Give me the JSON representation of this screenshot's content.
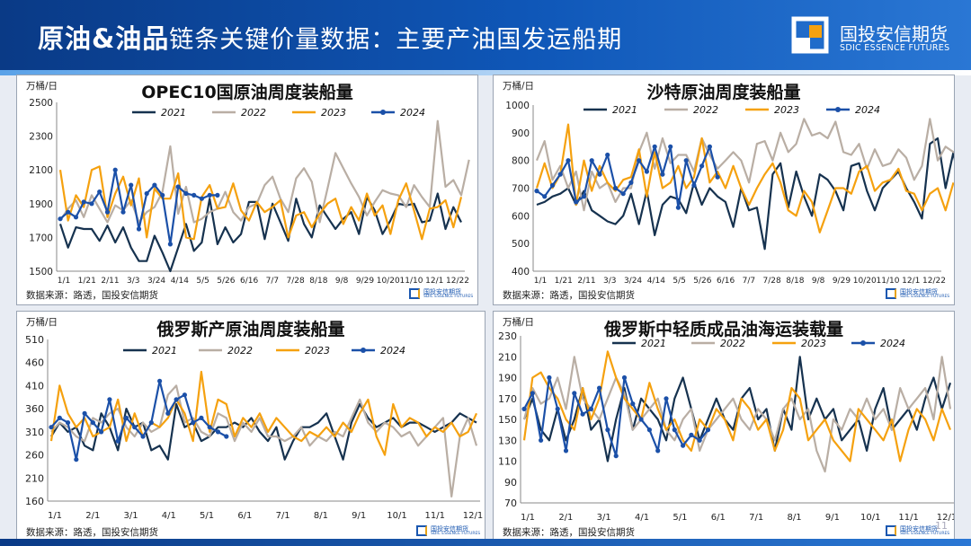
{
  "header": {
    "title_bold": "原油&油品",
    "title_rest": "链条关键价量数据：主要产油国发运船期",
    "logo_cn": "国投安信期货",
    "logo_en": "SDIC ESSENCE FUTURES"
  },
  "page_number": "11",
  "colors": {
    "2021": "#16324f",
    "2022": "#b9aea4",
    "2023": "#f5a10f",
    "2024": "#1b50a8"
  },
  "chart_data": [
    {
      "type": "line",
      "title": "OPEC10国原油周度装船量",
      "unit": "万桶/日",
      "source": "数据来源：路透，国投安信期货",
      "watermark_cn": "国投安信期货",
      "watermark_en": "SDIC ESSENCE FUTURES",
      "legend": [
        "2021",
        "2022",
        "2023",
        "2024"
      ],
      "ylim": [
        1500,
        2500
      ],
      "yticks": [
        1500,
        1700,
        1900,
        2100,
        2300,
        2500
      ],
      "xtick_labels": [
        "1/1",
        "1/21",
        "2/11",
        "3/3",
        "3/24",
        "4/14",
        "5/5",
        "5/26",
        "6/16",
        "7/7",
        "7/28",
        "8/18",
        "9/8",
        "9/29",
        "10/20",
        "11/10",
        "12/1",
        "12/22"
      ],
      "series": [
        {
          "name": "2021",
          "values": [
            1780,
            1640,
            1760,
            1750,
            1750,
            1680,
            1770,
            1670,
            1760,
            1640,
            1560,
            1560,
            1710,
            1610,
            1500,
            1640,
            1780,
            1620,
            1670,
            1930,
            1660,
            1760,
            1670,
            1720,
            1910,
            1910,
            1690,
            1900,
            1790,
            1680,
            1930,
            1780,
            1700,
            1890,
            1820,
            1750,
            1810,
            1850,
            1720,
            1940,
            1860,
            1720,
            1800,
            1900,
            1890,
            1900,
            1790,
            1800,
            1960,
            1750,
            1880,
            1790
          ]
        },
        {
          "name": "2022",
          "values": [
            1800,
            1870,
            1920,
            1820,
            1950,
            1870,
            1790,
            1890,
            1860,
            1920,
            1790,
            1850,
            1880,
            1970,
            2240,
            1840,
            2000,
            1790,
            1810,
            1850,
            1870,
            1970,
            1850,
            1800,
            1880,
            1900,
            2010,
            2060,
            1930,
            1850,
            2050,
            2110,
            2030,
            1790,
            1990,
            2200,
            2110,
            2020,
            1940,
            1830,
            1910,
            1980,
            1960,
            1950,
            1880,
            2010,
            1940,
            1880,
            2390,
            2000,
            2040,
            1950,
            2160
          ]
        },
        {
          "name": "2023",
          "values": [
            2100,
            1800,
            1950,
            1880,
            2100,
            2120,
            1820,
            1960,
            2060,
            1890,
            2050,
            1700,
            1990,
            1930,
            1930,
            2080,
            1700,
            1690,
            1940,
            2010,
            1870,
            1880,
            2020,
            1860,
            1800,
            1910,
            1850,
            1880,
            1920,
            1700,
            1830,
            1850,
            1760,
            1840,
            1900,
            1930,
            1780,
            1880,
            1800,
            1960,
            1830,
            1890,
            1720,
            1920,
            2020,
            1860,
            1690,
            1870,
            1880,
            1920,
            1760,
            1940
          ]
        },
        {
          "name": "2024",
          "values": [
            1810,
            1850,
            1820,
            1910,
            1900,
            1970,
            1850,
            2100,
            1850,
            2010,
            1750,
            1960,
            2010,
            1950,
            1660,
            2000,
            1960,
            1950,
            1930,
            1950,
            1950
          ]
        }
      ]
    },
    {
      "type": "line",
      "title": "沙特原油周度装船量",
      "unit": "万桶/日",
      "source": "数据来源：路透，国投安信期货",
      "watermark_cn": "国投安信期货",
      "watermark_en": "SDIC ESSENCE FUTURES",
      "legend": [
        "2021",
        "2022",
        "2023",
        "2024"
      ],
      "ylim": [
        400,
        1000
      ],
      "yticks": [
        400,
        500,
        600,
        700,
        800,
        900,
        1000
      ],
      "xtick_labels": [
        "1/1",
        "1/21",
        "2/11",
        "3/3",
        "3/24",
        "4/14",
        "5/5",
        "5/26",
        "6/16",
        "7/7",
        "7/28",
        "8/18",
        "9/8",
        "9/29",
        "10/20",
        "11/10",
        "12/1",
        "12/22"
      ],
      "series": [
        {
          "name": "2021",
          "values": [
            640,
            650,
            670,
            680,
            700,
            640,
            690,
            620,
            600,
            580,
            570,
            600,
            680,
            570,
            690,
            530,
            640,
            670,
            660,
            610,
            720,
            640,
            700,
            670,
            650,
            560,
            700,
            620,
            630,
            480,
            750,
            790,
            630,
            760,
            670,
            600,
            750,
            730,
            690,
            620,
            780,
            790,
            690,
            620,
            700,
            730,
            760,
            700,
            650,
            590,
            860,
            880,
            700,
            830,
            660,
            890,
            650,
            760
          ]
        },
        {
          "name": "2022",
          "values": [
            800,
            870,
            730,
            780,
            700,
            760,
            620,
            760,
            700,
            720,
            650,
            700,
            700,
            830,
            900,
            770,
            880,
            790,
            820,
            820,
            760,
            880,
            820,
            770,
            800,
            830,
            800,
            720,
            860,
            870,
            800,
            900,
            830,
            860,
            950,
            890,
            900,
            880,
            940,
            830,
            820,
            860,
            770,
            840,
            780,
            790,
            840,
            810,
            730,
            780,
            950,
            800,
            850,
            830,
            830
          ]
        },
        {
          "name": "2023",
          "values": [
            700,
            790,
            700,
            750,
            930,
            640,
            800,
            690,
            780,
            720,
            690,
            730,
            740,
            840,
            670,
            830,
            700,
            720,
            780,
            700,
            740,
            880,
            720,
            760,
            700,
            780,
            700,
            640,
            700,
            750,
            790,
            720,
            620,
            600,
            690,
            650,
            540,
            620,
            700,
            700,
            680,
            760,
            780,
            690,
            720,
            730,
            770,
            690,
            680,
            620,
            680,
            700,
            620,
            720
          ]
        },
        {
          "name": "2024",
          "values": [
            690,
            670,
            710,
            750,
            800,
            650,
            670,
            800,
            750,
            820,
            700,
            680,
            720,
            800,
            760,
            850,
            750,
            850,
            630,
            800,
            710,
            780,
            850,
            740
          ]
        }
      ]
    },
    {
      "type": "line",
      "title": "俄罗斯产原油周度装船量",
      "unit": "万桶/日",
      "source": "数据来源：路透，国投安信期货",
      "watermark_cn": "国投安信期货",
      "watermark_en": "SDIC ESSENCE FUTURES",
      "legend": [
        "2021",
        "2022",
        "2023",
        "2024"
      ],
      "ylim": [
        160,
        510
      ],
      "yticks": [
        160,
        210,
        260,
        310,
        360,
        410,
        460,
        510
      ],
      "xtick_labels": [
        "1/1",
        "2/1",
        "3/1",
        "4/1",
        "5/1",
        "6/1",
        "7/1",
        "8/1",
        "9/1",
        "10/1",
        "11/1",
        "12/1"
      ],
      "series": [
        {
          "name": "2021",
          "values": [
            300,
            330,
            310,
            320,
            280,
            270,
            350,
            320,
            270,
            360,
            320,
            330,
            270,
            280,
            250,
            370,
            320,
            330,
            290,
            300,
            320,
            320,
            330,
            320,
            340,
            310,
            290,
            320,
            250,
            290,
            320,
            320,
            330,
            350,
            300,
            250,
            330,
            370,
            340,
            320,
            330,
            340,
            320,
            330,
            330,
            320,
            310,
            320,
            330,
            350,
            340,
            330
          ]
        },
        {
          "name": "2022",
          "values": [
            310,
            330,
            320,
            300,
            290,
            340,
            330,
            350,
            360,
            320,
            300,
            330,
            310,
            320,
            390,
            410,
            330,
            340,
            310,
            300,
            350,
            340,
            290,
            330,
            310,
            340,
            300,
            300,
            290,
            300,
            320,
            280,
            300,
            290,
            310,
            300,
            340,
            380,
            330,
            310,
            330,
            320,
            300,
            310,
            280,
            300,
            320,
            340,
            170,
            300,
            340,
            280
          ]
        },
        {
          "name": "2023",
          "values": [
            290,
            410,
            350,
            320,
            340,
            300,
            310,
            320,
            380,
            290,
            350,
            300,
            330,
            320,
            340,
            380,
            350,
            290,
            440,
            310,
            380,
            370,
            300,
            340,
            320,
            350,
            310,
            340,
            320,
            300,
            290,
            310,
            300,
            320,
            300,
            330,
            310,
            350,
            380,
            300,
            260,
            370,
            320,
            340,
            330,
            300,
            320,
            310,
            330,
            300,
            310,
            350
          ]
        },
        {
          "name": "2024",
          "values": [
            320,
            340,
            330,
            250,
            350,
            330,
            310,
            380,
            290,
            340,
            320,
            300,
            330,
            420,
            350,
            380,
            390,
            330,
            340,
            320,
            310,
            300
          ]
        }
      ]
    },
    {
      "type": "line",
      "title": "俄罗斯中轻质成品油海运装载量",
      "unit": "万桶/日",
      "source": "数据来源：路透，国投安信期货",
      "watermark_cn": "国投安信期货",
      "watermark_en": "SDIC ESSENCE FUTURES",
      "legend": [
        "2021",
        "2022",
        "2023",
        "2024"
      ],
      "ylim": [
        70,
        230
      ],
      "yticks": [
        70,
        90,
        110,
        130,
        150,
        170,
        190,
        210,
        230
      ],
      "xtick_labels": [
        "1/1",
        "2/1",
        "3/1",
        "4/1",
        "5/1",
        "6/1",
        "7/1",
        "8/1",
        "9/1",
        "10/1",
        "11/1",
        "12/1"
      ],
      "series": [
        {
          "name": "2021",
          "values": [
            150,
            170,
            140,
            130,
            160,
            130,
            150,
            180,
            140,
            150,
            110,
            150,
            180,
            140,
            170,
            160,
            150,
            130,
            170,
            190,
            160,
            130,
            150,
            170,
            150,
            140,
            170,
            180,
            150,
            160,
            120,
            160,
            140,
            210,
            150,
            170,
            150,
            160,
            130,
            140,
            150,
            120,
            160,
            180,
            140,
            150,
            160,
            140,
            170,
            190,
            160,
            185
          ]
        },
        {
          "name": "2022",
          "values": [
            150,
            180,
            165,
            170,
            190,
            160,
            210,
            170,
            160,
            150,
            170,
            190,
            175,
            140,
            150,
            160,
            170,
            140,
            130,
            150,
            160,
            120,
            140,
            150,
            160,
            170,
            150,
            140,
            160,
            150,
            130,
            160,
            170,
            150,
            160,
            120,
            100,
            150,
            140,
            160,
            150,
            170,
            150,
            160,
            140,
            180,
            160,
            170,
            180,
            150,
            210,
            160
          ]
        },
        {
          "name": "2023",
          "values": [
            130,
            190,
            195,
            180,
            170,
            150,
            140,
            180,
            150,
            170,
            215,
            190,
            170,
            160,
            150,
            185,
            160,
            140,
            150,
            130,
            120,
            150,
            140,
            160,
            150,
            130,
            170,
            160,
            140,
            150,
            120,
            140,
            180,
            170,
            130,
            140,
            150,
            130,
            120,
            110,
            160,
            150,
            140,
            130,
            150,
            110,
            140,
            160,
            150,
            130,
            160,
            140
          ]
        },
        {
          "name": "2024",
          "values": [
            160,
            175,
            130,
            190,
            160,
            120,
            175,
            155,
            160,
            180,
            140,
            115,
            190,
            165,
            150,
            140,
            120,
            170,
            140,
            125,
            135,
            130,
            140
          ]
        }
      ]
    }
  ]
}
